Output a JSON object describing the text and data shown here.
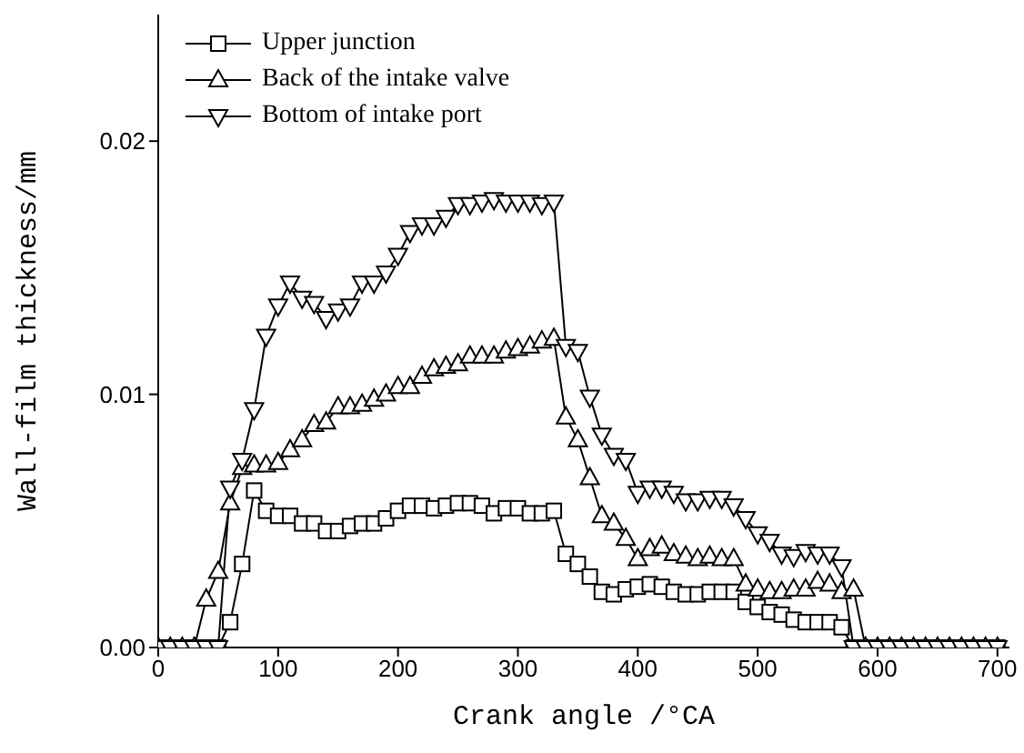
{
  "chart_data": {
    "type": "line",
    "xlabel": "Crank angle /°CA",
    "ylabel": "Wall-film thickness/mm",
    "x": [
      0,
      10,
      20,
      30,
      40,
      50,
      60,
      70,
      80,
      90,
      100,
      110,
      120,
      130,
      140,
      150,
      160,
      170,
      180,
      190,
      200,
      210,
      220,
      230,
      240,
      250,
      260,
      270,
      280,
      290,
      300,
      310,
      320,
      330,
      340,
      350,
      360,
      370,
      380,
      390,
      400,
      410,
      420,
      430,
      440,
      450,
      460,
      470,
      480,
      490,
      500,
      510,
      520,
      530,
      540,
      550,
      560,
      570,
      580,
      590,
      600,
      610,
      620,
      630,
      640,
      650,
      660,
      670,
      680,
      690,
      700
    ],
    "series": [
      {
        "name": "Upper junction",
        "color": "#000000",
        "marker": "square",
        "values": [
          0,
          0,
          0,
          0,
          0,
          0,
          0.001,
          0.0033,
          0.0062,
          0.0054,
          0.0052,
          0.0052,
          0.0049,
          0.0049,
          0.0046,
          0.0046,
          0.0048,
          0.0049,
          0.0049,
          0.0051,
          0.0054,
          0.0056,
          0.0056,
          0.0055,
          0.0056,
          0.0057,
          0.0057,
          0.0056,
          0.0053,
          0.0055,
          0.0055,
          0.0053,
          0.0053,
          0.0054,
          0.0037,
          0.0033,
          0.0028,
          0.0022,
          0.0021,
          0.0023,
          0.0024,
          0.0025,
          0.0024,
          0.0022,
          0.0021,
          0.0021,
          0.0022,
          0.0022,
          0.0022,
          0.0018,
          0.0016,
          0.0014,
          0.0013,
          0.0011,
          0.001,
          0.001,
          0.001,
          0.0008,
          0,
          0,
          0,
          0,
          0,
          0,
          0,
          0,
          0,
          0,
          0,
          0,
          0
        ]
      },
      {
        "name": "Back of the intake valve",
        "color": "#000000",
        "marker": "triangle",
        "values": [
          0,
          0,
          0,
          0,
          0.0019,
          0.003,
          0.0057,
          0.0071,
          0.0072,
          0.0072,
          0.0073,
          0.0078,
          0.0082,
          0.0088,
          0.0089,
          0.0095,
          0.0095,
          0.0096,
          0.0098,
          0.01,
          0.0103,
          0.0103,
          0.0107,
          0.011,
          0.0111,
          0.0112,
          0.0115,
          0.0115,
          0.0115,
          0.0117,
          0.0118,
          0.0119,
          0.0121,
          0.0122,
          0.0091,
          0.0082,
          0.0067,
          0.0052,
          0.0049,
          0.0043,
          0.0035,
          0.0039,
          0.004,
          0.0037,
          0.0036,
          0.0035,
          0.0036,
          0.0035,
          0.0035,
          0.0025,
          0.0023,
          0.0022,
          0.0022,
          0.0023,
          0.0023,
          0.0026,
          0.0025,
          0.0022,
          0.0023,
          0,
          0,
          0,
          0,
          0,
          0,
          0,
          0,
          0,
          0,
          0,
          0
        ]
      },
      {
        "name": "Bottom of intake port",
        "color": "#000000",
        "marker": "triangle-down",
        "values": [
          0,
          0,
          0,
          0,
          0,
          0,
          0.0063,
          0.0074,
          0.0094,
          0.0123,
          0.0135,
          0.0144,
          0.0138,
          0.0136,
          0.013,
          0.0133,
          0.0135,
          0.0144,
          0.0144,
          0.0148,
          0.0155,
          0.0164,
          0.0167,
          0.0167,
          0.017,
          0.0175,
          0.0175,
          0.0176,
          0.0177,
          0.0176,
          0.0176,
          0.0176,
          0.0175,
          0.0176,
          0.0119,
          0.0117,
          0.0099,
          0.0084,
          0.0076,
          0.0074,
          0.0061,
          0.0063,
          0.0063,
          0.0061,
          0.0058,
          0.0058,
          0.0059,
          0.0059,
          0.0056,
          0.0051,
          0.0045,
          0.0042,
          0.0037,
          0.0036,
          0.0038,
          0.0037,
          0.0037,
          0.0032,
          0,
          0,
          0,
          0,
          0,
          0,
          0,
          0,
          0,
          0,
          0,
          0,
          0
        ]
      }
    ],
    "xlim": [
      0,
      710
    ],
    "xticks": [
      0,
      100,
      200,
      300,
      400,
      500,
      600,
      700
    ],
    "ylim": [
      0,
      0.025
    ],
    "yticks": [
      {
        "value": 0,
        "label": "0.00"
      },
      {
        "value": 0.01,
        "label": "0.01"
      },
      {
        "value": 0.02,
        "label": "0.02"
      }
    ],
    "grid": false,
    "legend": "top left",
    "line_style": "solid"
  }
}
